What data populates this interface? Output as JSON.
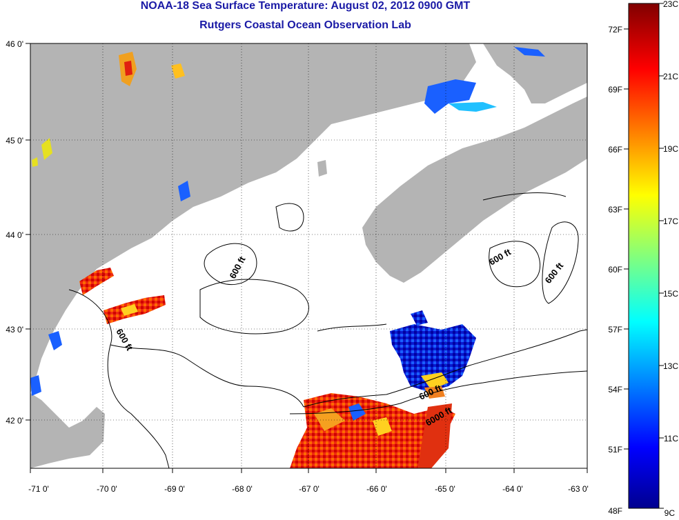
{
  "title": "NOAA-18 Sea Surface Temperature:  August 02, 2012 0900 GMT",
  "subtitle": "Rutgers Coastal Ocean Observation Lab",
  "map": {
    "lon_ticks": [
      "-71 0'",
      "-70 0'",
      "-69 0'",
      "-68 0'",
      "-67 0'",
      "-66 0'",
      "-65 0'",
      "-64 0'",
      "-63 0'"
    ],
    "lat_ticks": [
      "46 0'",
      "45 0'",
      "44 0'",
      "43 0'",
      "42 0'"
    ],
    "contour_labels": [
      "600 ft",
      "600 ft",
      "600 ft",
      "600 ft",
      "600 ft",
      "6000 ft"
    ],
    "land_color": "#b4b4b4",
    "missing_color": "#ffffff"
  },
  "colorbar": {
    "fahrenheit_labels": [
      "72F",
      "69F",
      "66F",
      "63F",
      "60F",
      "57F",
      "54F",
      "51F",
      "48F"
    ],
    "celsius_labels": [
      "23C",
      "21C",
      "19C",
      "17C",
      "15C",
      "13C",
      "11C",
      "9C"
    ],
    "colors": [
      "#00008f",
      "#0000ff",
      "#0080ff",
      "#00ffff",
      "#80ff80",
      "#ffff00",
      "#ff8000",
      "#ff0000",
      "#800000"
    ]
  }
}
